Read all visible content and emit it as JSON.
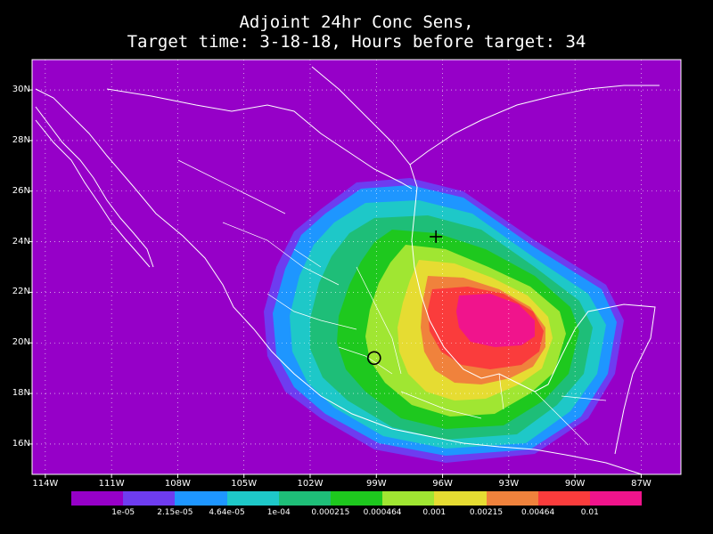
{
  "title": {
    "line1": "Adjoint 24hr Conc Sens,",
    "line2": "Target time: 3-18-18, Hours before target: 34"
  },
  "map": {
    "background_color": "#9600c8",
    "lat_labels": [
      "30N",
      "28N",
      "26N",
      "24N",
      "22N",
      "20N",
      "18N",
      "16N"
    ],
    "lat_values": [
      30,
      28,
      26,
      24,
      22,
      20,
      18,
      16
    ],
    "lon_labels": [
      "114W",
      "111W",
      "108W",
      "105W",
      "102W",
      "99W",
      "96W",
      "93W",
      "90W",
      "87W"
    ],
    "lon_values": [
      -114,
      -111,
      -108,
      -105,
      -102,
      -99,
      -96,
      -93,
      -90,
      -87
    ],
    "lat_range": [
      14.8,
      31.2
    ],
    "lon_range": [
      -114.6,
      -85.2
    ],
    "target_marker": {
      "icon": "plus-marker-icon",
      "lon": -96.3,
      "lat": 24.2
    },
    "source_marker": {
      "icon": "circle-marker-icon",
      "lon": -99.1,
      "lat": 19.4
    }
  },
  "colorbar": {
    "colors": [
      "#9600c8",
      "#6e3cf0",
      "#1e96ff",
      "#1ec8c8",
      "#1ebe78",
      "#1ec81e",
      "#a0e632",
      "#e6dc32",
      "#f0823c",
      "#fa3c3c",
      "#f0148c"
    ],
    "labels": [
      "1e-05",
      "2.15e-05",
      "4.64e-05",
      "1e-04",
      "0.000215",
      "0.000464",
      "0.001",
      "0.00215",
      "0.00464",
      "0.01"
    ]
  }
}
